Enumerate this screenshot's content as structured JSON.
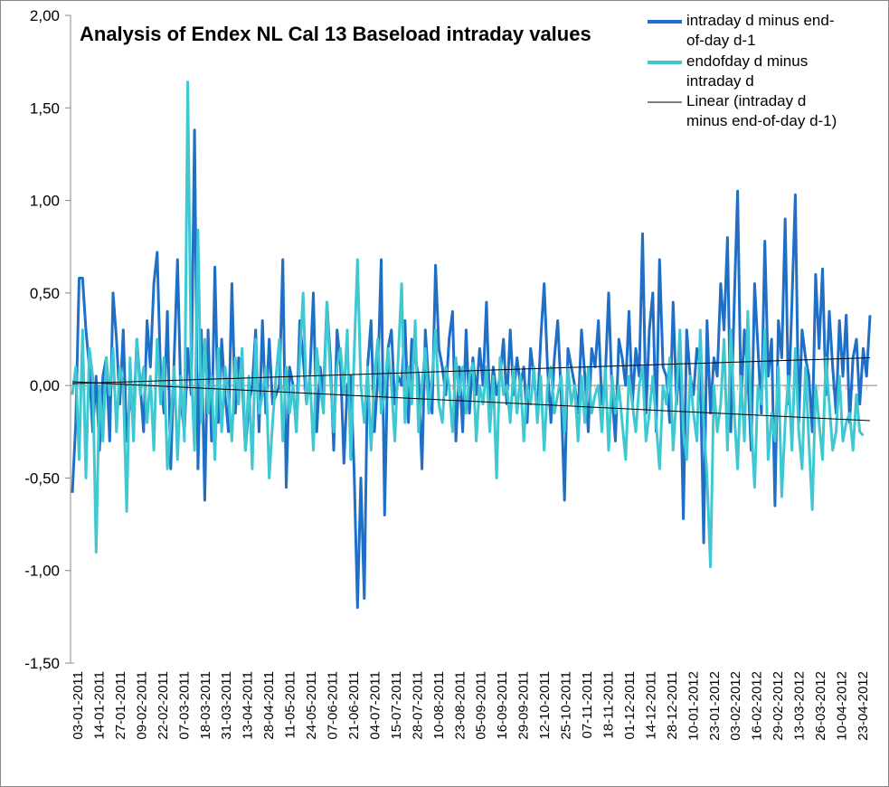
{
  "chart_data": {
    "type": "line",
    "title": "Analysis of Endex NL Cal 13 Baseload intraday values",
    "xlabel": "",
    "ylabel": "",
    "ylim": [
      -1.5,
      2.0
    ],
    "y_ticks": [
      "2,00",
      "1,50",
      "1,00",
      "0,50",
      "0,00",
      "-0,50",
      "-1,00",
      "-1,50"
    ],
    "y_tick_values": [
      2.0,
      1.5,
      1.0,
      0.5,
      0.0,
      -0.5,
      -1.0,
      -1.5
    ],
    "x_tick_labels": [
      "03-01-2011",
      "14-01-2011",
      "27-01-2011",
      "09-02-2011",
      "22-02-2011",
      "07-03-2011",
      "18-03-2011",
      "31-03-2011",
      "13-04-2011",
      "28-04-2011",
      "11-05-2011",
      "24-05-2011",
      "07-06-2011",
      "21-06-2011",
      "04-07-2011",
      "15-07-2011",
      "28-07-2011",
      "10-08-2011",
      "23-08-2011",
      "05-09-2011",
      "16-09-2011",
      "29-09-2011",
      "12-10-2011",
      "25-10-2011",
      "07-11-2011",
      "18-11-2011",
      "01-12-2011",
      "14-12-2011",
      "28-12-2011",
      "10-01-2012",
      "23-01-2012",
      "03-02-2012",
      "16-02-2012",
      "29-02-2012",
      "13-03-2012",
      "26-03-2012",
      "10-04-2012",
      "23-04-2012"
    ],
    "grid": false,
    "legend_position": "top-right",
    "series": [
      {
        "name": "intraday d minus end-of-day d-1",
        "color": "#1f6fc6",
        "values": [
          -0.58,
          -0.2,
          0.58,
          0.58,
          0.3,
          0.1,
          -0.25,
          0.05,
          -0.35,
          0.05,
          0.15,
          -0.3,
          0.5,
          0.25,
          -0.1,
          0.3,
          -0.3,
          -0.05,
          -0.2,
          0.25,
          0.0,
          -0.25,
          0.35,
          0.1,
          0.55,
          0.72,
          0.05,
          -0.15,
          0.4,
          -0.45,
          0.15,
          0.68,
          -0.1,
          -0.25,
          0.2,
          -0.05,
          1.38,
          -0.45,
          0.3,
          -0.62,
          0.3,
          -0.3,
          0.64,
          -0.2,
          0.25,
          -0.05,
          -0.25,
          0.55,
          -0.15,
          0.15,
          0.05,
          -0.35,
          -0.1,
          0.0,
          0.3,
          -0.25,
          0.35,
          -0.15,
          0.25,
          -0.1,
          -0.05,
          0.0,
          0.68,
          -0.55,
          0.1,
          0.0,
          -0.25,
          0.35,
          0.15,
          -0.1,
          0.05,
          0.5,
          -0.25,
          0.1,
          -0.05,
          0.45,
          0.15,
          -0.35,
          0.3,
          0.12,
          -0.42,
          0.0,
          0.05,
          -0.45,
          -1.2,
          -0.5,
          -1.15,
          0.1,
          0.35,
          -0.25,
          0.05,
          0.68,
          -0.7,
          0.2,
          0.3,
          -0.1,
          0.05,
          0.0,
          0.35,
          -0.2,
          0.25,
          0.15,
          0.05,
          -0.45,
          0.3,
          0.0,
          -0.15,
          0.65,
          0.2,
          0.1,
          -0.05,
          0.25,
          0.4,
          -0.3,
          0.1,
          -0.25,
          0.3,
          -0.15,
          0.15,
          -0.05,
          0.2,
          0.0,
          0.45,
          -0.15,
          0.1,
          -0.05,
          0.05,
          0.25,
          -0.1,
          0.3,
          -0.05,
          0.15,
          0.0,
          0.1,
          -0.2,
          0.2,
          0.05,
          -0.15,
          0.25,
          0.55,
          0.1,
          -0.2,
          0.15,
          0.35,
          -0.05,
          -0.62,
          0.2,
          0.1,
          0.0,
          -0.15,
          0.3,
          0.05,
          -0.25,
          0.2,
          0.1,
          0.35,
          -0.1,
          0.05,
          0.5,
          -0.05,
          -0.3,
          0.25,
          0.15,
          0.0,
          0.4,
          -0.1,
          0.2,
          0.05,
          0.82,
          -0.15,
          0.3,
          0.5,
          -0.25,
          0.68,
          0.1,
          0.05,
          -0.2,
          0.45,
          -0.1,
          0.15,
          -0.72,
          0.3,
          0.05,
          -0.05,
          0.2,
          0.1,
          -0.85,
          0.35,
          -0.15,
          0.15,
          0.05,
          0.55,
          0.3,
          0.8,
          -0.25,
          0.45,
          1.05,
          -0.1,
          0.3,
          0.05,
          -0.35,
          0.55,
          0.2,
          -0.15,
          0.78,
          0.05,
          0.25,
          -0.65,
          0.35,
          0.15,
          0.9,
          -0.1,
          0.45,
          1.03,
          -0.2,
          0.3,
          0.15,
          0.05,
          -0.25,
          0.6,
          0.2,
          0.63,
          -0.05,
          0.4,
          0.1,
          -0.15,
          0.35,
          0.05,
          0.38,
          -0.2,
          0.15,
          0.25,
          -0.1,
          0.2,
          0.05,
          0.38
        ]
      },
      {
        "name": "endofday d minus intraday d",
        "color": "#3ec8d2",
        "values": [
          -0.05,
          0.1,
          -0.4,
          0.3,
          -0.5,
          0.2,
          0.05,
          -0.9,
          0.0,
          -0.3,
          0.15,
          -0.05,
          0.2,
          -0.25,
          0.1,
          0.0,
          -0.68,
          0.15,
          -0.3,
          0.25,
          -0.05,
          0.1,
          -0.2,
          0.05,
          -0.35,
          0.25,
          -0.1,
          0.15,
          -0.45,
          -0.2,
          0.1,
          -0.4,
          0.05,
          -0.3,
          1.64,
          0.1,
          -0.35,
          0.84,
          -0.2,
          0.25,
          -0.15,
          0.05,
          -0.4,
          0.2,
          -0.25,
          0.1,
          -0.05,
          -0.3,
          0.15,
          -0.1,
          0.2,
          -0.35,
          0.05,
          -0.45,
          0.25,
          -0.15,
          -0.05,
          0.1,
          -0.5,
          -0.2,
          0.05,
          0.25,
          -0.3,
          0.1,
          -0.15,
          0.0,
          -0.25,
          0.15,
          0.5,
          -0.1,
          0.05,
          -0.35,
          0.2,
          0.0,
          -0.15,
          0.45,
          0.05,
          -0.25,
          0.1,
          0.2,
          -0.05,
          0.3,
          -0.4,
          0.15,
          0.68,
          0.0,
          -0.2,
          0.1,
          -0.35,
          0.05,
          0.25,
          -0.15,
          -0.05,
          0.2,
          0.0,
          -0.3,
          0.15,
          0.55,
          -0.2,
          0.1,
          -0.1,
          0.35,
          -0.25,
          0.0,
          0.2,
          -0.15,
          0.05,
          0.3,
          -0.1,
          -0.2,
          0.1,
          0.0,
          -0.25,
          0.15,
          -0.05,
          0.1,
          -0.15,
          0.05,
          0.12,
          -0.3,
          0.0,
          -0.1,
          0.1,
          -0.25,
          0.05,
          -0.5,
          0.15,
          -0.05,
          0.0,
          -0.2,
          0.1,
          -0.15,
          0.05,
          -0.3,
          0.0,
          -0.1,
          0.1,
          -0.2,
          0.05,
          -0.35,
          0.0,
          0.1,
          -0.15,
          -0.05,
          0.05,
          -0.25,
          0.1,
          -0.1,
          0.0,
          -0.3,
          0.05,
          -0.2,
          0.1,
          -0.15,
          -0.05,
          0.0,
          -0.25,
          0.1,
          -0.35,
          0.05,
          -0.15,
          0.0,
          -0.2,
          -0.4,
          0.05,
          -0.1,
          -0.25,
          0.0,
          0.1,
          -0.3,
          -0.15,
          0.05,
          -0.2,
          -0.45,
          0.0,
          -0.1,
          0.15,
          -0.35,
          -0.05,
          0.3,
          -0.25,
          -0.4,
          0.05,
          -0.15,
          -0.3,
          0.3,
          -0.2,
          -0.5,
          -0.98,
          0.0,
          -0.25,
          -0.1,
          0.25,
          -0.35,
          0.3,
          -0.15,
          -0.45,
          0.05,
          -0.3,
          0.4,
          -0.2,
          -0.55,
          0.0,
          -0.1,
          0.3,
          -0.4,
          -0.15,
          -0.3,
          0.1,
          -0.6,
          -0.2,
          0.05,
          -0.35,
          0.2,
          -0.25,
          -0.45,
          0.1,
          -0.3,
          -0.67,
          0.0,
          -0.2,
          -0.4,
          0.15,
          -0.1,
          -0.35,
          -0.25,
          0.05,
          -0.3,
          -0.2,
          -0.15,
          -0.35,
          -0.05,
          -0.25,
          -0.27
        ]
      },
      {
        "name": "Linear (intraday d minus end-of-day d-1)",
        "color": "#000000",
        "type": "trend",
        "start": 0.01,
        "end": 0.15
      }
    ],
    "extra_trend": {
      "color": "#000000",
      "start": 0.02,
      "end": -0.19
    }
  }
}
